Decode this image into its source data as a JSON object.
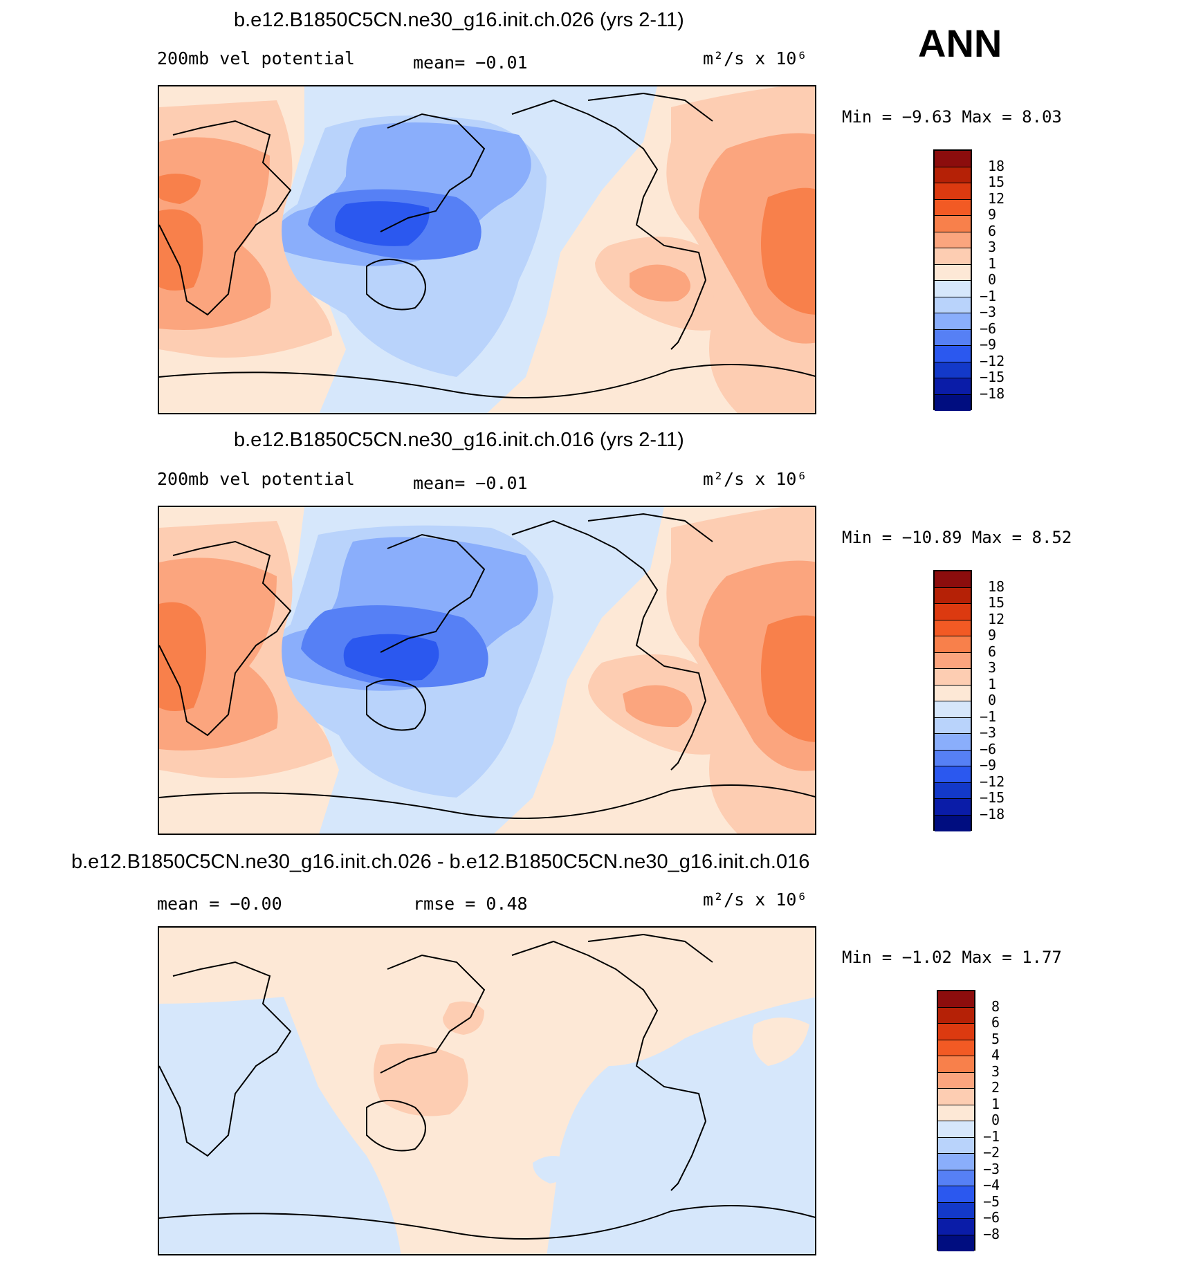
{
  "season": "ANN",
  "panels": [
    {
      "title": "b.e12.B1850C5CN.ne30_g16.init.ch.026 (yrs 2-11)",
      "left_label": "200mb vel potential",
      "mid_label": "mean=   −0.01",
      "units": "m²/s x 10⁶",
      "minmax": "Min =   −9.63 Max =    8.03",
      "colorbar_labels": [
        "18",
        "15",
        "12",
        "9",
        "6",
        "3",
        "1",
        "0",
        "−1",
        "−3",
        "−6",
        "−9",
        "−12",
        "−15",
        "−18"
      ]
    },
    {
      "title": "b.e12.B1850C5CN.ne30_g16.init.ch.016 (yrs 2-11)",
      "left_label": "200mb vel potential",
      "mid_label": "mean=   −0.01",
      "units": "m²/s x 10⁶",
      "minmax": "Min = −10.89 Max =    8.52",
      "colorbar_labels": [
        "18",
        "15",
        "12",
        "9",
        "6",
        "3",
        "1",
        "0",
        "−1",
        "−3",
        "−6",
        "−9",
        "−12",
        "−15",
        "−18"
      ]
    },
    {
      "title": "b.e12.B1850C5CN.ne30_g16.init.ch.026 - b.e12.B1850C5CN.ne30_g16.init.ch.016",
      "left_label": "mean =   −0.00",
      "mid_label": "rmse =    0.48",
      "units": "m²/s x 10⁶",
      "minmax": "Min =   −1.02 Max =    1.77",
      "colorbar_labels": [
        "8",
        "6",
        "5",
        "4",
        "3",
        "2",
        "1",
        "0",
        "−1",
        "−2",
        "−3",
        "−4",
        "−5",
        "−6",
        "−8"
      ]
    }
  ],
  "colors": {
    "scale": [
      "#8c0d0d",
      "#b52106",
      "#dc3a10",
      "#f25a24",
      "#f8804b",
      "#fba57e",
      "#fdcdb2",
      "#fde8d6",
      "#d6e7fb",
      "#b9d3fb",
      "#8aaefb",
      "#5680f5",
      "#2b58ef",
      "#1339c9",
      "#0a1ca8",
      "#000d80"
    ]
  }
}
